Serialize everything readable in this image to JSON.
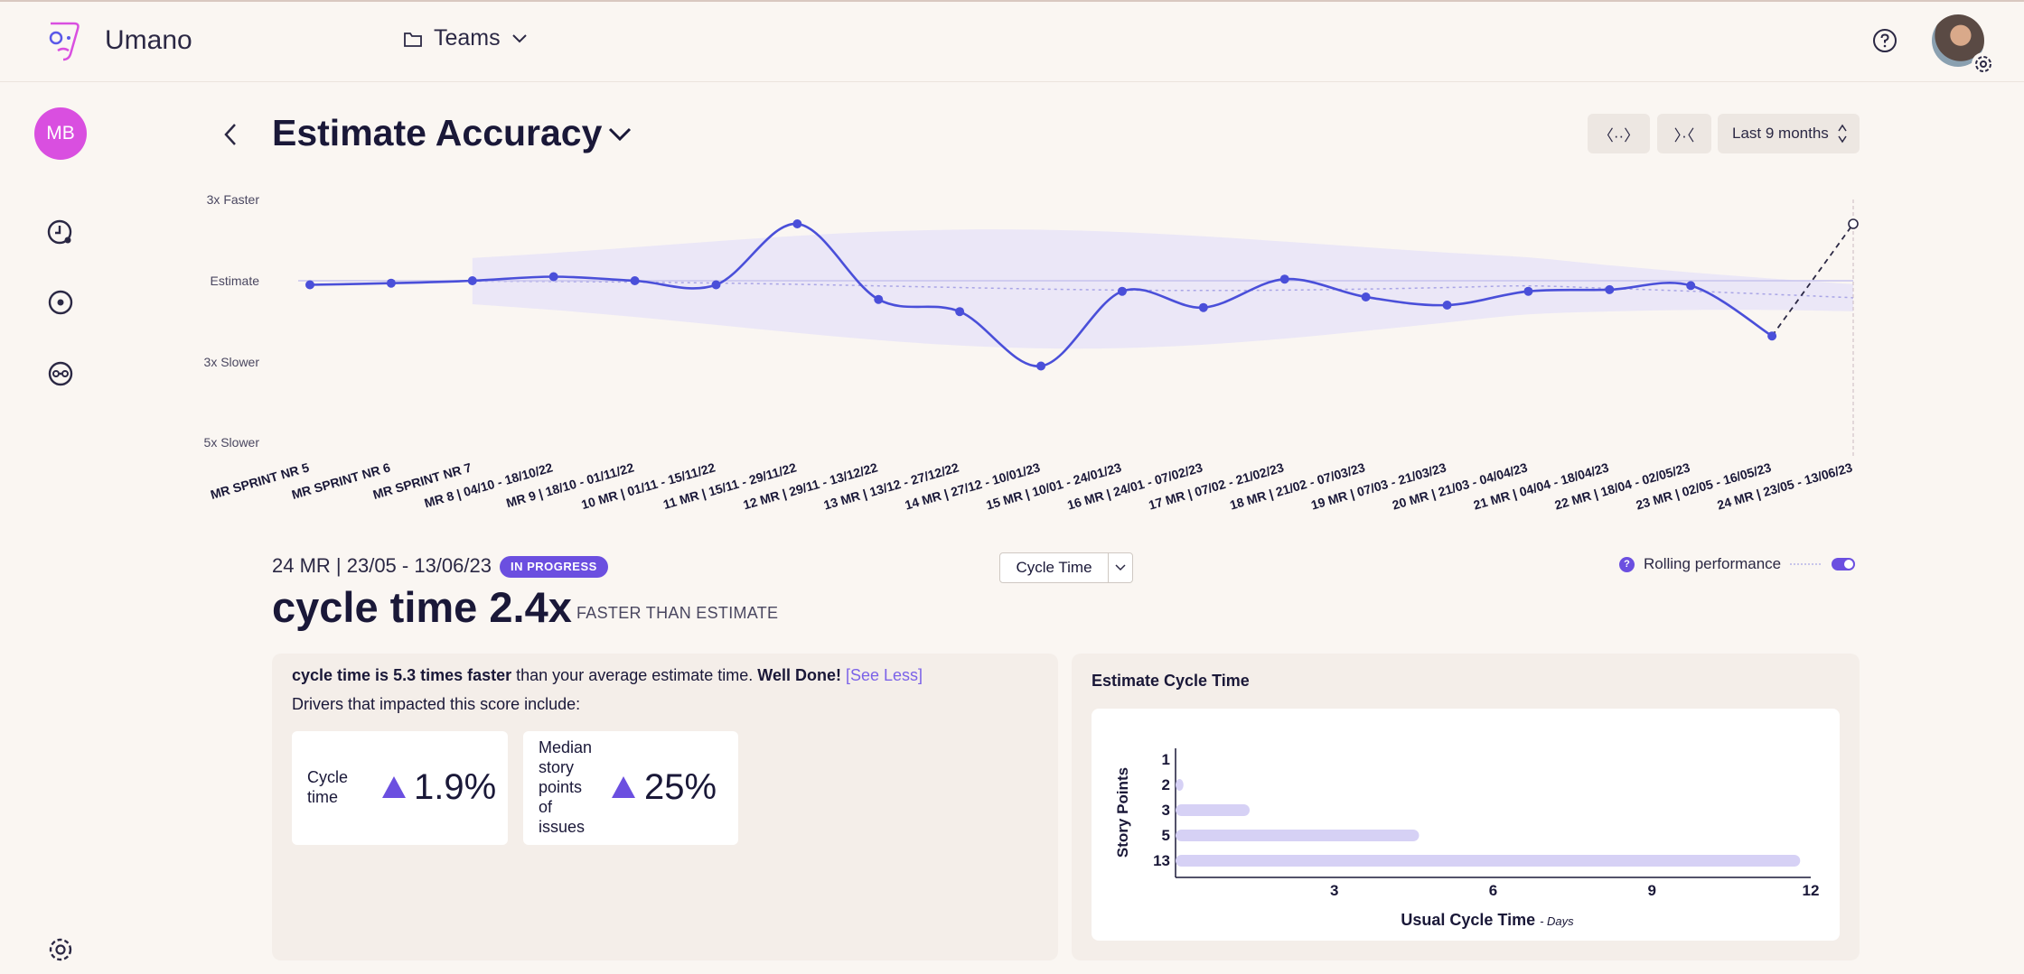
{
  "app": {
    "name": "Umano"
  },
  "header": {
    "team_selector": "Teams"
  },
  "sidebar": {
    "user_initials": "MB"
  },
  "page": {
    "title": "Estimate Accuracy"
  },
  "controls": {
    "expand_icon": "〈··〉",
    "collapse_icon": "〉·〈",
    "period_label": "Last 9 months"
  },
  "chart_data": {
    "type": "line",
    "y_ticks": [
      "3x Faster",
      "Estimate",
      "3x Slower",
      "5x Slower"
    ],
    "x": [
      "MR SPRINT NR 5",
      "MR SPRINT NR 6",
      "MR SPRINT NR 7",
      "MR 8 | 04/10 - 18/10/22",
      "MR 9 | 18/10 - 01/11/22",
      "10 MR | 01/11 - 15/11/22",
      "11 MR | 15/11 - 29/11/22",
      "12 MR | 29/11 - 13/12/22",
      "13 MR | 13/12 - 27/12/22",
      "14 MR | 27/12 - 10/01/23",
      "15 MR | 10/01 - 24/01/23",
      "16 MR | 24/01 - 07/02/23",
      "17 MR | 07/02 - 21/02/23",
      "18 MR | 21/02 - 07/03/23",
      "19 MR | 07/03 - 21/03/23",
      "20 MR | 21/03 - 04/04/23",
      "21 MR | 04/04 - 18/04/23",
      "22 MR | 18/04 - 02/05/23",
      "23 MR | 02/05 - 16/05/23",
      "24 MR | 23/05 - 13/06/23"
    ],
    "values": [
      -0.05,
      -0.03,
      0.0,
      0.05,
      0.0,
      -0.05,
      0.7,
      -0.23,
      -0.38,
      -1.05,
      -0.13,
      -0.33,
      0.02,
      -0.2,
      -0.3,
      -0.13,
      -0.11,
      -0.06,
      -0.68,
      0.7
    ],
    "last_point_in_progress": true,
    "rolling_band": true
  },
  "selected": {
    "period": "24 MR | 23/05 - 13/06/23",
    "status": "IN PROGRESS",
    "metric": "cycle time 2.4x",
    "direction": "FASTER THAN ESTIMATE"
  },
  "metric_selector": {
    "value": "Cycle Time"
  },
  "rolling": {
    "label": "Rolling performance",
    "help": "?"
  },
  "summary": {
    "bold_part": "cycle time is 5.3 times faster",
    "rest": " than your average estimate time. ",
    "well_done": "Well Done!",
    "see_less": "[See Less]",
    "drivers": "Drivers that impacted this score include:"
  },
  "drivers": [
    {
      "label_lines": [
        "Cycle",
        "time"
      ],
      "value": "1.9%"
    },
    {
      "label_lines": [
        "Median",
        "story",
        "points",
        "of",
        "issues"
      ],
      "value": "25%"
    }
  ],
  "estimate_chart": {
    "title": "Estimate Cycle Time",
    "type": "bar",
    "categories": [
      "1",
      "2",
      "3",
      "5",
      "13"
    ],
    "values": [
      0,
      0.15,
      1.4,
      4.6,
      11.8
    ],
    "x_ticks": [
      "3",
      "6",
      "9",
      "12"
    ],
    "xlim": [
      0,
      12
    ],
    "ylabel": "Story Points",
    "xlabel": "Usual Cycle Time",
    "xlabel_unit": "- Days"
  }
}
